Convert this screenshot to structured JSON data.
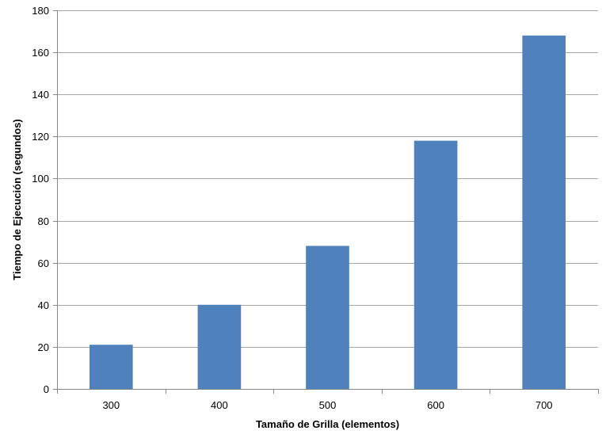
{
  "chart_data": {
    "type": "bar",
    "title": "",
    "xlabel": "Tamaño de Grilla (elementos)",
    "ylabel": "Tiempo de Ejecución (segundos)",
    "categories": [
      "300",
      "400",
      "500",
      "600",
      "700"
    ],
    "values": [
      21,
      40,
      68,
      118,
      168
    ],
    "ylim": [
      0,
      180
    ],
    "yticks": [
      0,
      20,
      40,
      60,
      80,
      100,
      120,
      140,
      160,
      180
    ],
    "grid": "horizontal",
    "legend": "none",
    "bar_color": "#4F81BD",
    "grid_color": "#A6A6A6",
    "axis_color": "#868686"
  }
}
